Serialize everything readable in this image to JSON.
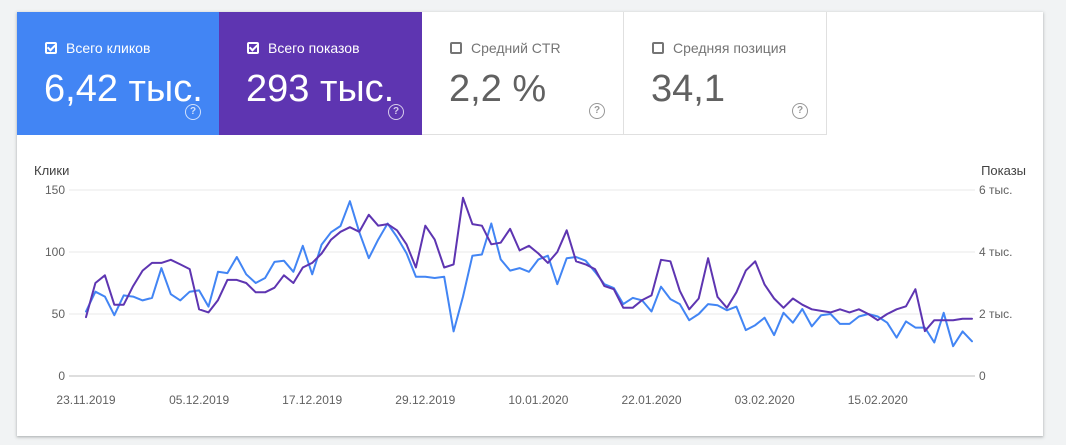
{
  "metrics": [
    {
      "label": "Всего кликов",
      "value": "6,42 тыс.",
      "checked": true,
      "color": "#4285f4",
      "icon": "help-icon"
    },
    {
      "label": "Всего показов",
      "value": "293 тыс.",
      "checked": true,
      "color": "#5e35b1",
      "icon": "help-icon"
    },
    {
      "label": "Средний CTR",
      "value": "2,2 %",
      "checked": false,
      "color": "#ffffff",
      "icon": "help-icon"
    },
    {
      "label": "Средняя позиция",
      "value": "34,1",
      "checked": false,
      "color": "#ffffff",
      "icon": "help-icon"
    }
  ],
  "chart_data": {
    "type": "line",
    "left_axis_title": "Клики",
    "right_axis_title": "Показы",
    "left_ticks": [
      "0",
      "50",
      "100",
      "150"
    ],
    "right_ticks": [
      "0",
      "2 тыс.",
      "4 тыс.",
      "6 тыс."
    ],
    "ylim_left": [
      0,
      150
    ],
    "ylim_right": [
      0,
      6000
    ],
    "x_ticks": [
      {
        "label": "23.11.2019",
        "index": 0
      },
      {
        "label": "05.12.2019",
        "index": 12
      },
      {
        "label": "17.12.2019",
        "index": 24
      },
      {
        "label": "29.12.2019",
        "index": 36
      },
      {
        "label": "10.01.2020",
        "index": 48
      },
      {
        "label": "22.01.2020",
        "index": 60
      },
      {
        "label": "03.02.2020",
        "index": 72
      },
      {
        "label": "15.02.2020",
        "index": 84
      }
    ],
    "grid": true,
    "series": [
      {
        "name": "Всего кликов",
        "axis": "left",
        "color": "#4285f4",
        "values": [
          52,
          68,
          64,
          49,
          65,
          64,
          61,
          63,
          87,
          66,
          61,
          68,
          69,
          56,
          84,
          83,
          96,
          82,
          75,
          79,
          92,
          93,
          84,
          105,
          82,
          106,
          116,
          121,
          141,
          116,
          95,
          110,
          123,
          112,
          99,
          80,
          80,
          79,
          80,
          36,
          64,
          97,
          98,
          123,
          94,
          85,
          87,
          84,
          94,
          97,
          74,
          95,
          96,
          93,
          84,
          74,
          71,
          58,
          63,
          61,
          52,
          72,
          62,
          58,
          45,
          50,
          58,
          57,
          53,
          56,
          37,
          41,
          47,
          33,
          51,
          43,
          54,
          40,
          49,
          50,
          42,
          42,
          48,
          50,
          48,
          43,
          31,
          44,
          39,
          39,
          27,
          51,
          24,
          36,
          28
        ]
      },
      {
        "name": "Всего показов",
        "axis": "right",
        "color": "#5e35b1",
        "values": [
          1900,
          3000,
          3250,
          2300,
          2300,
          2900,
          3400,
          3650,
          3650,
          3750,
          3600,
          3450,
          2150,
          2050,
          2450,
          3100,
          3100,
          3000,
          2700,
          2700,
          2850,
          3250,
          3000,
          3500,
          3650,
          3950,
          4400,
          4650,
          4800,
          4650,
          5200,
          4850,
          4900,
          4700,
          4250,
          3500,
          4850,
          4400,
          3500,
          3600,
          5750,
          4900,
          4850,
          4250,
          4300,
          4750,
          4050,
          4200,
          3950,
          3650,
          4000,
          4700,
          3700,
          3600,
          3450,
          2900,
          2800,
          2200,
          2200,
          2450,
          2600,
          3750,
          3700,
          2750,
          2150,
          2500,
          3800,
          2550,
          2200,
          2700,
          3400,
          3700,
          2950,
          2500,
          2200,
          2500,
          2300,
          2150,
          2100,
          2050,
          2150,
          2050,
          2150,
          2000,
          1800,
          2000,
          2150,
          2250,
          2800,
          1450,
          1800,
          1800,
          1800,
          1850,
          1850
        ]
      }
    ]
  }
}
